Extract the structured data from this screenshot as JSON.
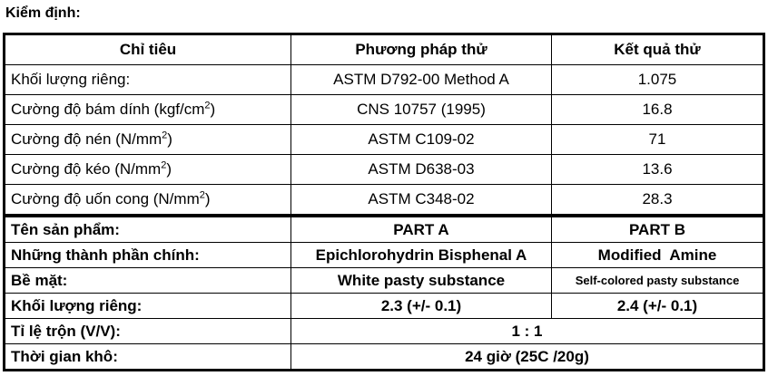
{
  "title": "Kiểm định:",
  "test_table": {
    "headers": [
      "Chỉ tiêu",
      "Phương pháp thử",
      "Kết quả thử"
    ],
    "rows": [
      {
        "criterion": "Khối lượng riêng:",
        "unit_sup": "",
        "unit_tail": "",
        "method": "ASTM D792-00 Method A",
        "result": "1.075"
      },
      {
        "criterion": "Cường độ bám dính (kgf/cm",
        "unit_sup": "2",
        "unit_tail": ")",
        "method": "CNS 10757 (1995)",
        "result": "16.8"
      },
      {
        "criterion": "Cường độ nén (N/mm",
        "unit_sup": "2",
        "unit_tail": ")",
        "method": "ASTM C109-02",
        "result": "71"
      },
      {
        "criterion": "Cường độ kéo (N/mm",
        "unit_sup": "2",
        "unit_tail": ")",
        "method": "ASTM D638-03",
        "result": "13.6"
      },
      {
        "criterion": "Cường độ uốn cong (N/mm",
        "unit_sup": "2",
        "unit_tail": ")",
        "method": "ASTM C348-02",
        "result": "28.3"
      }
    ]
  },
  "product_table": {
    "rows": [
      {
        "label": "Tên sản phẩm:",
        "part_a": "PART A",
        "part_b": "PART B"
      },
      {
        "label": "Những thành phần chính:",
        "part_a": "Epichlorohydrin Bisphenal A",
        "part_b": "Modified  Amine"
      },
      {
        "label": "Bề mặt:",
        "part_a": "White pasty substance",
        "part_b": "Self-colored pasty substance"
      },
      {
        "label": "Khối lượng riêng:",
        "part_a": "2.3 (+/- 0.1)",
        "part_b": "2.4 (+/- 0.1)"
      }
    ],
    "merged_rows": [
      {
        "label": "Tỉ lệ trộn (V/V):",
        "value": "1 : 1"
      },
      {
        "label": "Thời gian khô:",
        "value": "24 giờ (25C /20g)"
      }
    ]
  }
}
